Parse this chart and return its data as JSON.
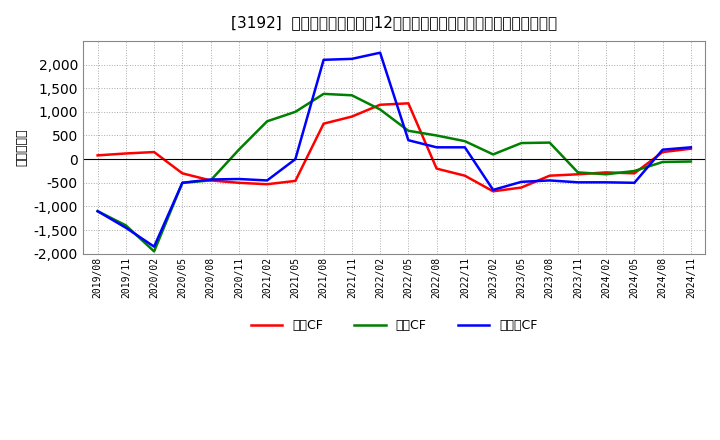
{
  "title": "[3192]  キャッシュフローの12か月移動合計の対前年同期増減額の推移",
  "ylabel": "（百万円）",
  "background_color": "#ffffff",
  "plot_bg_color": "#ffffff",
  "grid_color": "#aaaaaa",
  "ylim": [
    -2000,
    2500
  ],
  "yticks": [
    -2000,
    -1500,
    -1000,
    -500,
    0,
    500,
    1000,
    1500,
    2000
  ],
  "dates": [
    "2019/08",
    "2019/11",
    "2020/02",
    "2020/05",
    "2020/08",
    "2020/11",
    "2021/02",
    "2021/05",
    "2021/08",
    "2021/11",
    "2022/02",
    "2022/05",
    "2022/08",
    "2022/11",
    "2023/02",
    "2023/05",
    "2023/08",
    "2023/11",
    "2024/02",
    "2024/05",
    "2024/08",
    "2024/11"
  ],
  "operating_cf": [
    80,
    120,
    150,
    -300,
    -450,
    -500,
    -530,
    -460,
    750,
    900,
    1150,
    1180,
    -200,
    -350,
    -680,
    -600,
    -350,
    -320,
    -280,
    -300,
    150,
    220
  ],
  "investing_cf": [
    -1100,
    -1400,
    -1950,
    -500,
    -450,
    200,
    800,
    1000,
    1380,
    1350,
    1050,
    600,
    500,
    380,
    100,
    340,
    350,
    -280,
    -320,
    -250,
    -60,
    -50
  ],
  "free_cf": [
    -1100,
    -1450,
    -1850,
    -500,
    -430,
    -420,
    -450,
    0,
    2100,
    2120,
    2250,
    400,
    250,
    250,
    -650,
    -480,
    -450,
    -490,
    -490,
    -500,
    200,
    250
  ],
  "operating_color": "#ff0000",
  "investing_color": "#008000",
  "free_color": "#0000ff",
  "legend_labels": [
    "営業CF",
    "投資CF",
    "フリーCF"
  ]
}
